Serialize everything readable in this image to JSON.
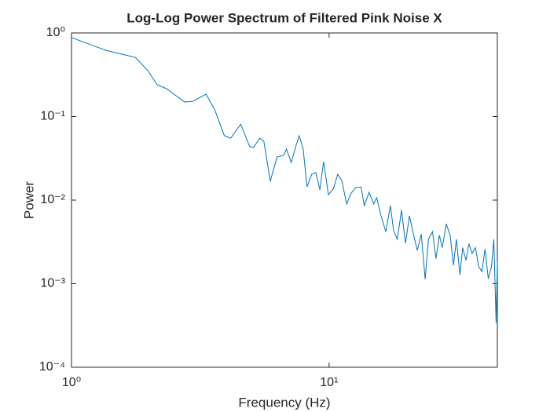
{
  "chart_data": {
    "type": "line",
    "title": "Log-Log Power Spectrum of Filtered Pink Noise X",
    "x_label": "Frequency (Hz)",
    "y_label": "Power",
    "x_scale": "log",
    "y_scale": "log",
    "xlim": [
      1,
      45
    ],
    "ylim": [
      0.0001,
      1
    ],
    "xticks": [
      {
        "value": 1,
        "label": "10⁰"
      },
      {
        "value": 10,
        "label": "10¹"
      }
    ],
    "yticks": [
      {
        "value": 0.0001,
        "label": "10⁻⁴"
      },
      {
        "value": 0.001,
        "label": "10⁻³"
      },
      {
        "value": 0.01,
        "label": "10⁻²"
      },
      {
        "value": 0.1,
        "label": "10⁻¹"
      },
      {
        "value": 1,
        "label": "10⁰"
      }
    ],
    "grid": false,
    "series": [
      {
        "color": "#0072bd",
        "x": [
          1,
          1.36,
          1.77,
          1.98,
          2.15,
          2.34,
          2.75,
          2.96,
          3.24,
          3.33,
          3.6,
          3.92,
          4.15,
          4.54,
          4.91,
          5.09,
          5.38,
          5.58,
          5.91,
          6.28,
          6.66,
          6.83,
          7.13,
          7.45,
          7.66,
          7.93,
          8.21,
          8.56,
          8.88,
          9.21,
          9.52,
          9.94,
          10.4,
          10.8,
          11.2,
          11.7,
          12.2,
          12.7,
          13.3,
          13.7,
          14.3,
          14.9,
          15.3,
          15.9,
          16.6,
          17.3,
          17.8,
          18.4,
          19.1,
          19.8,
          20.5,
          21.3,
          22,
          22.8,
          23.6,
          24.3,
          25.2,
          26,
          26.8,
          27.5,
          28.5,
          29.5,
          30.4,
          31.2,
          32.2,
          33,
          34,
          34.9,
          35.9,
          37,
          38.1,
          39.2,
          40.3,
          41.5,
          42.7,
          43.6,
          44.5,
          45
        ],
        "values": [
          0.88,
          0.62,
          0.51,
          0.354,
          0.24,
          0.215,
          0.149,
          0.152,
          0.177,
          0.185,
          0.12,
          0.059,
          0.055,
          0.081,
          0.044,
          0.0426,
          0.055,
          0.0506,
          0.0168,
          0.0328,
          0.0343,
          0.0407,
          0.0282,
          0.0454,
          0.0589,
          0.041,
          0.0144,
          0.0204,
          0.0213,
          0.0133,
          0.0288,
          0.0116,
          0.0138,
          0.0204,
          0.0172,
          0.009,
          0.0122,
          0.0141,
          0.0144,
          0.0086,
          0.0124,
          0.009,
          0.0107,
          0.0065,
          0.0042,
          0.0086,
          0.0043,
          0.0034,
          0.0076,
          0.00305,
          0.0065,
          0.0038,
          0.0025,
          0.0039,
          0.00113,
          0.0034,
          0.0042,
          0.002,
          0.0038,
          0.0027,
          0.0052,
          0.0038,
          0.00166,
          0.0034,
          0.00128,
          0.0027,
          0.0019,
          0.003,
          0.0023,
          0.0027,
          0.0016,
          0.0014,
          0.0026,
          0.00115,
          0.0016,
          0.0034,
          0.00034,
          0.0018
        ]
      }
    ]
  }
}
